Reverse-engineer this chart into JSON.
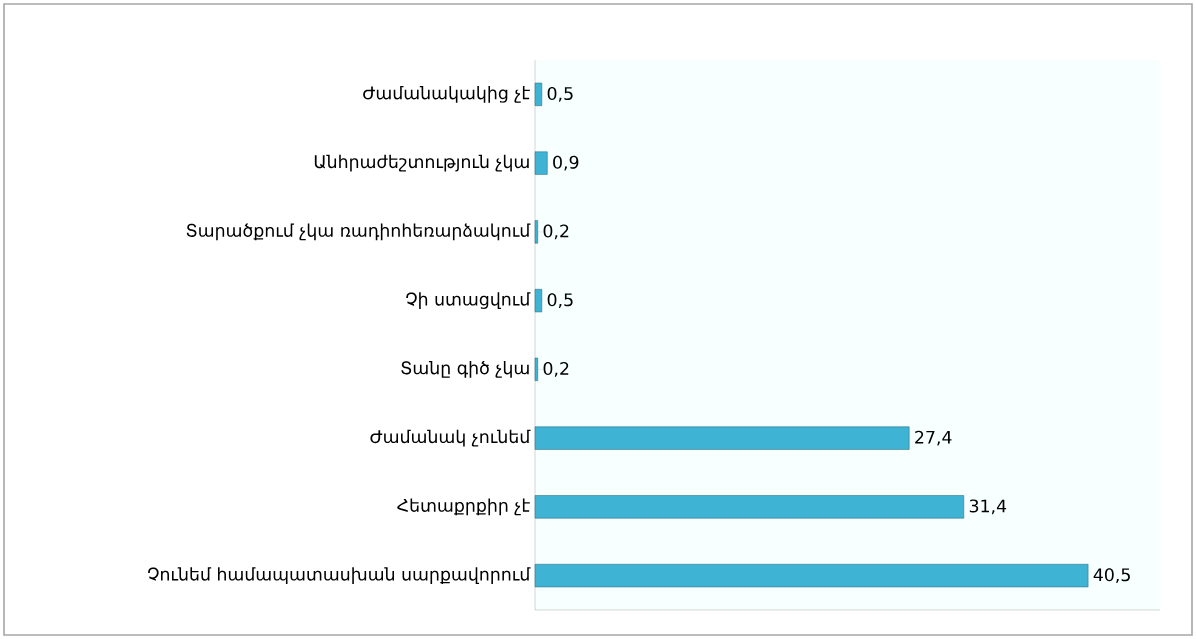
{
  "chart_data": {
    "type": "bar",
    "orientation": "horizontal",
    "color": "#3fb3d3",
    "categories": [
      "Ժամանակակից չէ",
      "Անհրաժեշտություն չկա",
      "Տարածքում չկա ռադիոհեռարձակում",
      "Չի ստացվում",
      "Տանը գիծ չկա",
      "Ժամանակ չունեմ",
      "Հետաքրքիր չէ",
      "Չունեմ համապատասխան սարքավորում"
    ],
    "values": [
      0.5,
      0.9,
      0.2,
      0.5,
      0.2,
      27.4,
      31.4,
      40.5
    ],
    "value_labels": [
      "0,5",
      "0,9",
      "0,2",
      "0,5",
      "0,2",
      "27,4",
      "31,4",
      "40,5"
    ]
  }
}
